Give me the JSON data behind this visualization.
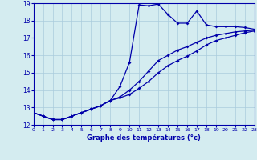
{
  "xlabel": "Graphe des températures (°c)",
  "bg_color": "#d4ecf0",
  "line_color": "#0000aa",
  "grid_color": "#aaccdd",
  "xlim": [
    0,
    23
  ],
  "ylim": [
    12,
    19
  ],
  "xticks": [
    0,
    1,
    2,
    3,
    4,
    5,
    6,
    7,
    8,
    9,
    10,
    11,
    12,
    13,
    14,
    15,
    16,
    17,
    18,
    19,
    20,
    21,
    22,
    23
  ],
  "yticks": [
    12,
    13,
    14,
    15,
    16,
    17,
    18,
    19
  ],
  "line1_x": [
    0,
    1,
    2,
    3,
    4,
    5,
    6,
    7,
    8,
    9,
    10,
    11,
    12,
    13,
    14,
    15,
    16,
    17,
    18,
    19,
    20,
    21,
    22,
    23
  ],
  "line1_y": [
    12.7,
    12.5,
    12.3,
    12.3,
    12.5,
    12.7,
    12.9,
    13.1,
    13.4,
    14.2,
    15.6,
    18.9,
    18.85,
    18.95,
    18.35,
    17.85,
    17.85,
    18.55,
    17.75,
    17.65,
    17.65,
    17.65,
    17.6,
    17.5
  ],
  "line2_x": [
    0,
    1,
    2,
    3,
    4,
    5,
    6,
    7,
    8,
    9,
    10,
    11,
    12,
    13,
    14,
    15,
    16,
    17,
    18,
    19,
    20,
    21,
    22,
    23
  ],
  "line2_y": [
    12.7,
    12.5,
    12.3,
    12.3,
    12.5,
    12.7,
    12.9,
    13.1,
    13.4,
    13.6,
    14.0,
    14.5,
    15.1,
    15.7,
    16.0,
    16.3,
    16.5,
    16.75,
    17.0,
    17.15,
    17.25,
    17.35,
    17.4,
    17.45
  ],
  "line3_x": [
    0,
    1,
    2,
    3,
    4,
    5,
    6,
    7,
    8,
    9,
    10,
    11,
    12,
    13,
    14,
    15,
    16,
    17,
    18,
    19,
    20,
    21,
    22,
    23
  ],
  "line3_y": [
    12.7,
    12.5,
    12.3,
    12.3,
    12.5,
    12.7,
    12.9,
    13.1,
    13.4,
    13.55,
    13.75,
    14.1,
    14.5,
    15.0,
    15.4,
    15.7,
    15.95,
    16.25,
    16.6,
    16.85,
    17.0,
    17.15,
    17.3,
    17.4
  ]
}
